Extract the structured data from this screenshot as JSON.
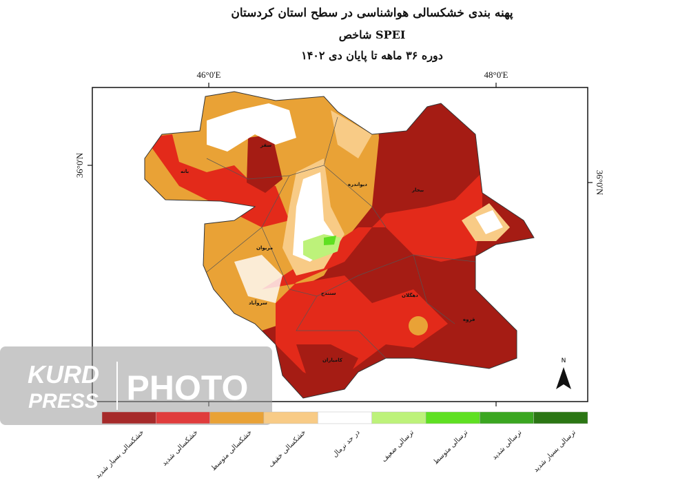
{
  "header": {
    "title": "پهنه بندی خشکسالی هواشناسی در سطح استان کردستان",
    "subtitle": "شاخص SPEI",
    "period": "دوره ۳۶ ماهه تا پایان دی ۱۴۰۲"
  },
  "map": {
    "lon_labels": [
      "46°0'E",
      "48°0'E"
    ],
    "lat_label_left": "36°0'N",
    "lat_label_right": "36°0'N",
    "north": "N",
    "cities": [
      "سقز",
      "بانه",
      "دیواندره",
      "بیجار",
      "مریوان",
      "سنندج",
      "دهگلان",
      "قروه",
      "سروآباد",
      "کامیاران"
    ]
  },
  "legend": [
    {
      "label": "خشکسالی بسیار شدید",
      "color": "#a62a2a"
    },
    {
      "label": "خشکسالی شدید",
      "color": "#e03c3c"
    },
    {
      "label": "خشکسالی متوسط",
      "color": "#e9a236"
    },
    {
      "label": "خشکسالی خفیف",
      "color": "#f8cb86"
    },
    {
      "label": "در حد نرمال",
      "color": "#ffffff"
    },
    {
      "label": "ترسالی ضعیف",
      "color": "#bdf27a"
    },
    {
      "label": "ترسالی متوسط",
      "color": "#5fe022"
    },
    {
      "label": "ترسالی شدید",
      "color": "#3aa620"
    },
    {
      "label": "ترسالی بسیار شدید",
      "color": "#2b7614"
    }
  ],
  "watermark": {
    "brand": [
      "KURD",
      "PRESS"
    ],
    "label": "PHOTO"
  }
}
